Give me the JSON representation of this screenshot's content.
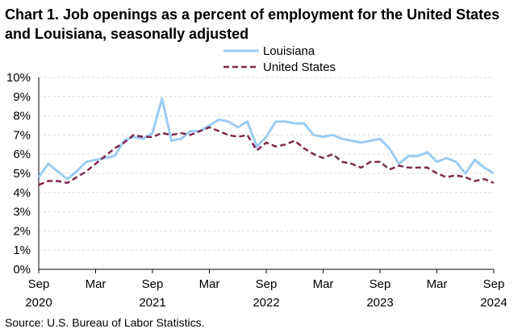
{
  "chart_data": {
    "type": "line",
    "title": "Chart 1. Job openings as a percent of employment for the United States and Louisiana, seasonally adjusted",
    "source": "Source: U.S. Bureau of Labor Statistics.",
    "ylim": [
      0,
      10
    ],
    "y_ticks": [
      "0%",
      "1%",
      "2%",
      "3%",
      "4%",
      "5%",
      "6%",
      "7%",
      "8%",
      "9%",
      "10%"
    ],
    "x_ticks": [
      {
        "index": 0,
        "month": "Sep",
        "year": "2020"
      },
      {
        "index": 6,
        "month": "Mar",
        "year": ""
      },
      {
        "index": 12,
        "month": "Sep",
        "year": "2021"
      },
      {
        "index": 18,
        "month": "Mar",
        "year": ""
      },
      {
        "index": 24,
        "month": "Sep",
        "year": "2022"
      },
      {
        "index": 30,
        "month": "Mar",
        "year": ""
      },
      {
        "index": 36,
        "month": "Sep",
        "year": "2023"
      },
      {
        "index": 42,
        "month": "Mar",
        "year": ""
      },
      {
        "index": 48,
        "month": "Sep",
        "year": "2024"
      }
    ],
    "legend_position": "top-right",
    "series": [
      {
        "name": "Louisiana",
        "color": "#9ccbf2",
        "style": "solid",
        "values": [
          4.8,
          5.5,
          5.1,
          4.7,
          5.1,
          5.6,
          5.7,
          5.8,
          5.9,
          6.7,
          6.9,
          6.8,
          7.1,
          8.9,
          6.7,
          6.8,
          7.2,
          7.2,
          7.5,
          7.8,
          7.7,
          7.4,
          7.7,
          6.4,
          6.9,
          7.7,
          7.7,
          7.6,
          7.6,
          7.0,
          6.9,
          7.0,
          6.8,
          6.7,
          6.6,
          6.7,
          6.8,
          6.3,
          5.5,
          5.9,
          5.9,
          6.1,
          5.6,
          5.8,
          5.6,
          5.0,
          5.7,
          5.3,
          5.0
        ]
      },
      {
        "name": "United States",
        "color": "#7b2a4e",
        "style": "dashed",
        "values": [
          4.4,
          4.6,
          4.6,
          4.5,
          4.8,
          5.1,
          5.5,
          5.9,
          6.3,
          6.6,
          7.0,
          6.9,
          6.9,
          7.1,
          7.0,
          7.1,
          7.0,
          7.2,
          7.4,
          7.2,
          7.0,
          6.9,
          7.0,
          6.2,
          6.6,
          6.4,
          6.5,
          6.7,
          6.3,
          6.0,
          5.8,
          6.0,
          5.6,
          5.5,
          5.3,
          5.6,
          5.6,
          5.2,
          5.4,
          5.3,
          5.3,
          5.3,
          5.0,
          4.8,
          4.9,
          4.8,
          4.6,
          4.7,
          4.5
        ]
      }
    ]
  }
}
